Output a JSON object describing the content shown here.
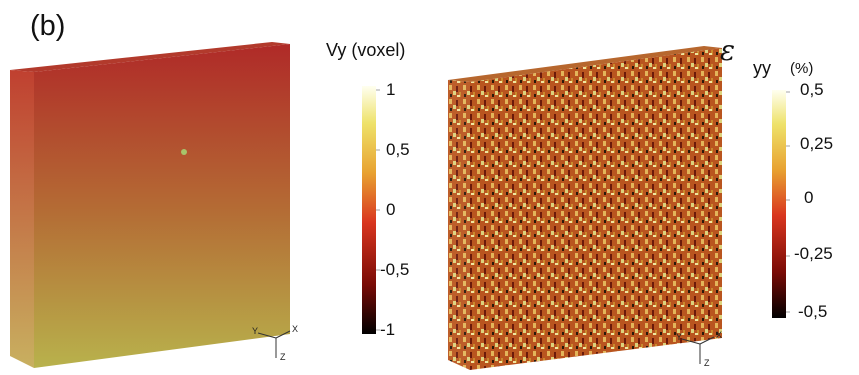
{
  "panel": {
    "label": "(b)"
  },
  "left_colorbar": {
    "title": "Vy (voxel)",
    "ticks": [
      "1",
      "0,5",
      "0",
      "-0,5",
      "-1"
    ],
    "colors": [
      "#000000",
      "#8b0000",
      "#e0301e",
      "#f28a1e",
      "#f5e04a",
      "#ffffcc"
    ]
  },
  "right_colorbar": {
    "symbol": "ε",
    "subscript": "yy",
    "unit": "(%)",
    "ticks": [
      "0,5",
      "0,25",
      "0",
      "-0,25",
      "-0,5"
    ],
    "colors": [
      "#000000",
      "#8b0000",
      "#e0301e",
      "#f28a1e",
      "#f5e04a",
      "#ffffcc"
    ]
  },
  "left_volume": {
    "top_color": "#b5302a",
    "bottom_color": "#b5b246",
    "side_color": "#c0623a"
  },
  "right_volume": {
    "base_color": "#b8521f",
    "speckle_colors": [
      "#e0b35a",
      "#d9d07a",
      "#f0e6a0",
      "#6b1a0a",
      "#2a1a0a",
      "#c98a2c"
    ]
  },
  "axes": {
    "labels": [
      "Y",
      "X",
      "Z"
    ]
  }
}
